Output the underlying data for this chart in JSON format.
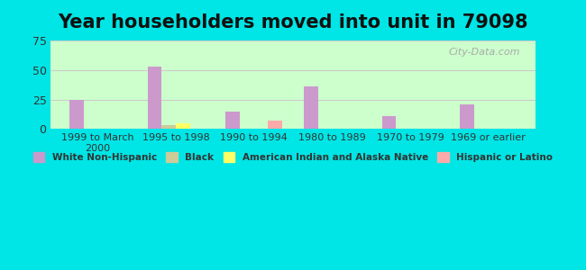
{
  "title": "Year householders moved into unit in 79098",
  "categories": [
    "1999 to March\n2000",
    "1995 to 1998",
    "1990 to 1994",
    "1980 to 1989",
    "1970 to 1979",
    "1969 or earlier"
  ],
  "series": {
    "White Non-Hispanic": {
      "values": [
        25,
        53,
        15,
        36,
        11,
        21
      ],
      "color": "#cc99cc"
    },
    "Black": {
      "values": [
        0,
        3,
        0,
        0,
        0,
        0
      ],
      "color": "#cccc99"
    },
    "American Indian and Alaska Native": {
      "values": [
        0,
        5,
        0,
        0,
        0,
        0
      ],
      "color": "#ffff66"
    },
    "Hispanic or Latino": {
      "values": [
        0,
        0,
        7,
        0,
        0,
        0
      ],
      "color": "#ffaaaa"
    }
  },
  "ylim": [
    0,
    75
  ],
  "yticks": [
    0,
    25,
    50,
    75
  ],
  "background_color": "#00e5e5",
  "plot_bg_top": "#ffffff",
  "plot_bg_bottom": "#ccffcc",
  "grid_color": "#cccccc",
  "title_fontsize": 15,
  "bar_width": 0.18,
  "watermark": "City-Data.com"
}
